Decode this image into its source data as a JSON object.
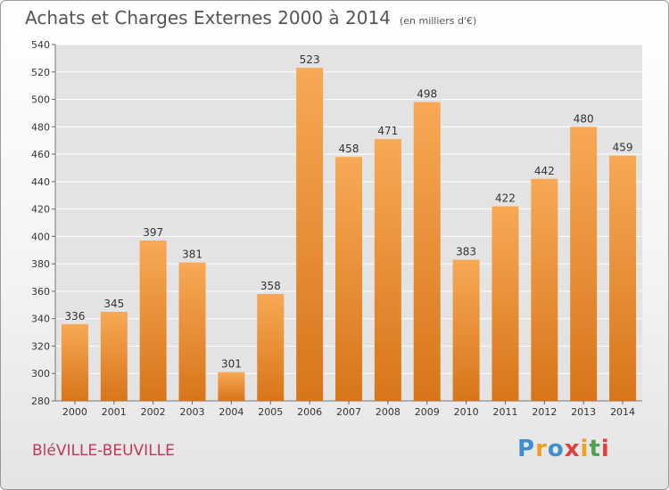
{
  "title": "Achats et Charges Externes 2000 à 2014",
  "unit_note": "(en milliers d'€)",
  "location": "BléVILLE-BEUVILLE",
  "logo": {
    "text": "Proxiti",
    "letters": [
      "P",
      "r",
      "o",
      "x",
      "i",
      "t",
      "i"
    ],
    "letter_colors": [
      "#3f8fd0",
      "#f0a020",
      "#3f8fd0",
      "#e04040",
      "#f0a020",
      "#50a050",
      "#e04040"
    ]
  },
  "colors": {
    "bar_top": "#f7a955",
    "bar_bottom": "#d8751a",
    "grid": "#ffffff",
    "plot_bg": "#e3e3e3"
  },
  "chart_data": {
    "type": "bar",
    "categories": [
      "2000",
      "2001",
      "2002",
      "2003",
      "2004",
      "2005",
      "2006",
      "2007",
      "2008",
      "2009",
      "2010",
      "2011",
      "2012",
      "2013",
      "2014"
    ],
    "values": [
      336,
      345,
      397,
      381,
      301,
      358,
      523,
      458,
      471,
      498,
      383,
      422,
      442,
      480,
      459
    ],
    "ylim": [
      280,
      540
    ],
    "yticks": [
      280,
      300,
      320,
      340,
      360,
      380,
      400,
      420,
      440,
      460,
      480,
      500,
      520,
      540
    ],
    "grid": true,
    "xlabel": "",
    "ylabel": ""
  }
}
